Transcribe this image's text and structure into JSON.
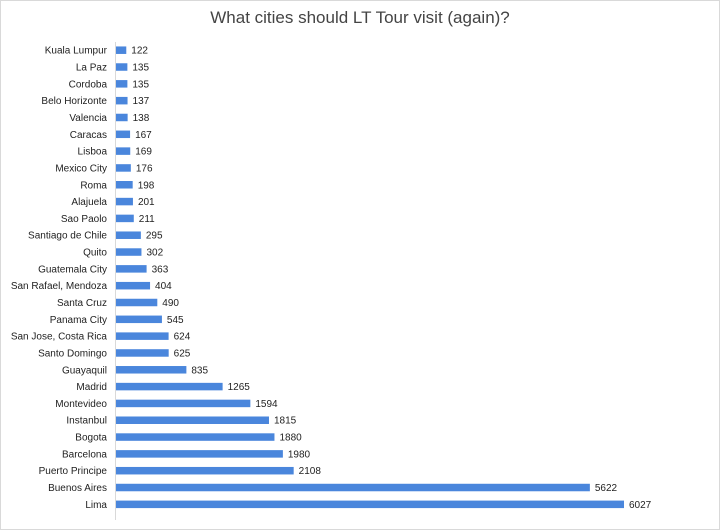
{
  "chart_data": {
    "type": "bar",
    "orientation": "horizontal",
    "title": "What cities should LT Tour visit (again)?",
    "xlabel": "",
    "ylabel": "",
    "bar_color": "#4a86dc",
    "grid": false,
    "legend": "none",
    "xlim": [
      0,
      6027
    ],
    "categories": [
      "Kuala Lumpur",
      "La Paz",
      "Cordoba",
      "Belo Horizonte",
      "Valencia",
      "Caracas",
      "Lisboa",
      "Mexico City",
      "Roma",
      "Alajuela",
      "Sao Paolo",
      "Santiago de Chile",
      "Quito",
      "Guatemala City",
      "San Rafael, Mendoza",
      "Santa Cruz",
      "Panama City",
      "San Jose, Costa Rica",
      "Santo Domingo",
      "Guayaquil",
      "Madrid",
      "Montevideo",
      "Instanbul",
      "Bogota",
      "Barcelona",
      "Puerto Principe",
      "Buenos Aires",
      "Lima"
    ],
    "values": [
      122,
      135,
      135,
      137,
      138,
      167,
      169,
      176,
      198,
      201,
      211,
      295,
      302,
      363,
      404,
      490,
      545,
      624,
      625,
      835,
      1265,
      1594,
      1815,
      1880,
      1980,
      2108,
      5622,
      6027
    ]
  }
}
